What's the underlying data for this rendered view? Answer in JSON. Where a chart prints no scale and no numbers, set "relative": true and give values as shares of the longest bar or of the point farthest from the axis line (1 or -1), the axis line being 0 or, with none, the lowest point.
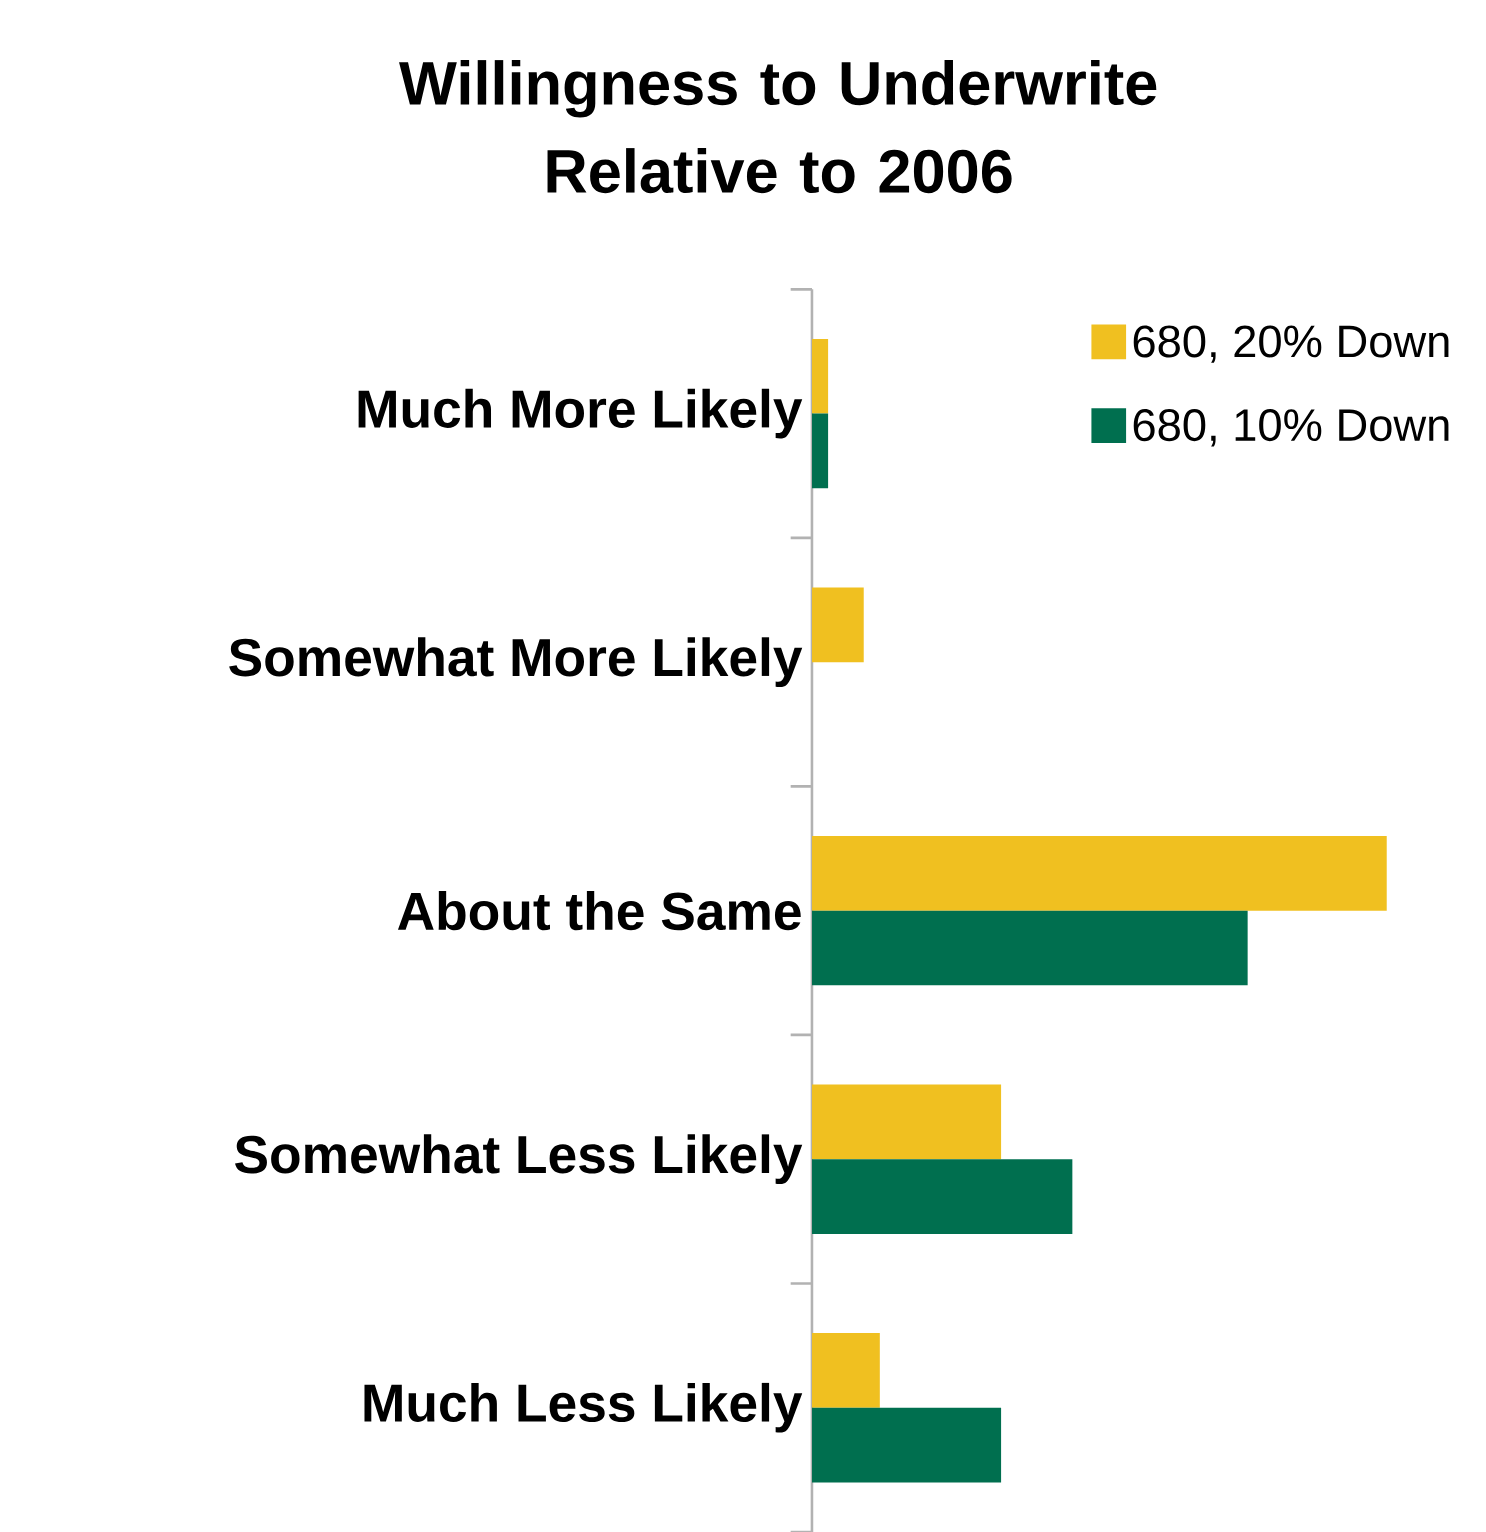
{
  "chart_data": {
    "type": "bar",
    "orientation": "horizontal",
    "relative": true,
    "title": "Willingness to Underwrite Relative to 2006",
    "categories": [
      "Much More Likely",
      "Somewhat More Likely",
      "About the Same",
      "Somewhat Less Likely",
      "Much Less Likely"
    ],
    "series": [
      {
        "name": "680, 20% Down",
        "color": "#f0c020",
        "values": [
          0.028,
          0.09,
          1,
          0.329,
          0.118
        ]
      },
      {
        "name": "680, 10% Down",
        "color": "#006f4f",
        "values": [
          0.028,
          0,
          0.758,
          0.453,
          0.329
        ]
      }
    ],
    "legend": "top right"
  }
}
